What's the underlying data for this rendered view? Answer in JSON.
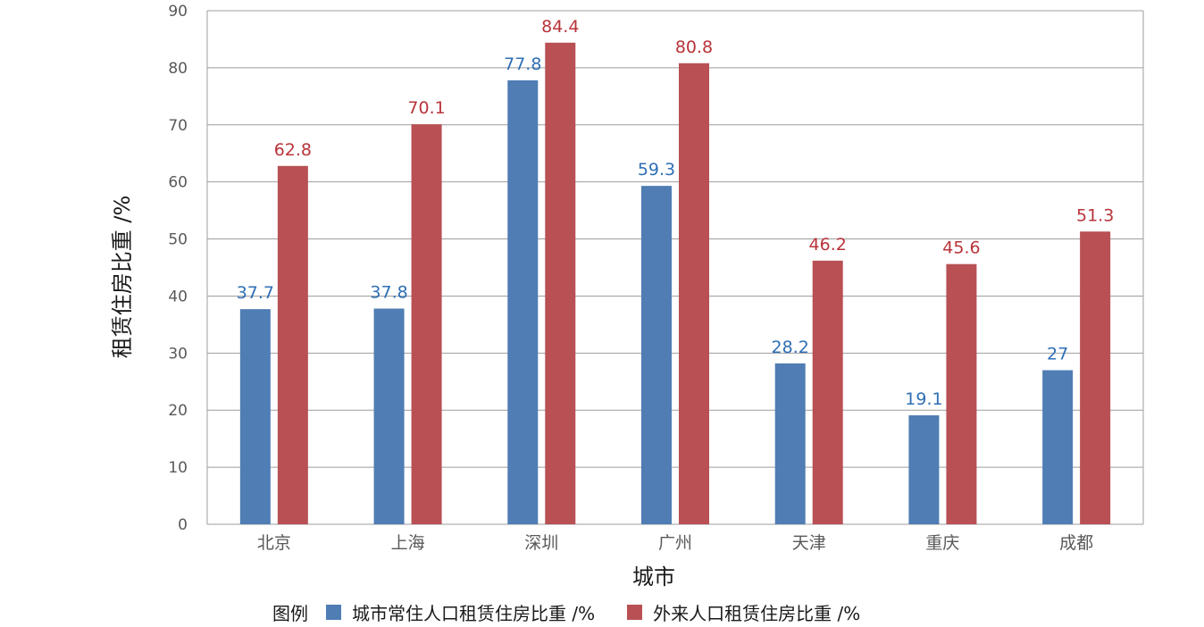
{
  "chart_data": {
    "type": "bar",
    "xlabel": "城市",
    "ylabel": "租赁住房比重 /%",
    "ylim": [
      0,
      90
    ],
    "yticks": [
      0,
      10,
      20,
      30,
      40,
      50,
      60,
      70,
      80,
      90
    ],
    "grid": true,
    "categories": [
      "北京",
      "上海",
      "深圳",
      "广州",
      "天津",
      "重庆",
      "成都"
    ],
    "series": [
      {
        "name": "城市常住人口租赁住房比重 /%",
        "values": [
          37.7,
          37.8,
          77.8,
          59.3,
          28.2,
          19.1,
          27
        ],
        "color": "#4f7db4",
        "label_color": "#2e6fb5"
      },
      {
        "name": "外来人口租赁住房比重 /%",
        "values": [
          62.8,
          70.1,
          84.4,
          80.8,
          46.2,
          45.6,
          51.3
        ],
        "color": "#b85054",
        "label_color": "#b8343a"
      }
    ],
    "legend": {
      "title": "图例",
      "placement": "bottom"
    }
  }
}
